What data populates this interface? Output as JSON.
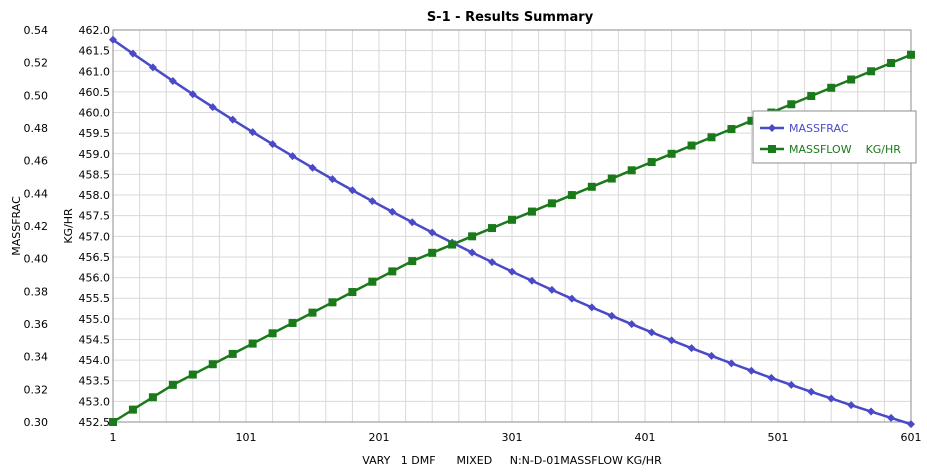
{
  "chart_data": {
    "type": "line",
    "title": "S-1 - Results Summary",
    "xlabel": "VARY   1 DMF      MIXED     N:N-D-01MASSFLOW KG/HR",
    "ylabel_left": "MASSFRAC",
    "ylabel_right": "KG/HR",
    "x_ticks": [
      1,
      101,
      201,
      301,
      401,
      501,
      601
    ],
    "xlim": [
      1,
      601
    ],
    "y1_ticks": [
      "0.30",
      "0.32",
      "0.34",
      "0.36",
      "0.38",
      "0.40",
      "0.42",
      "0.44",
      "0.46",
      "0.48",
      "0.50",
      "0.52",
      "0.54"
    ],
    "y1lim": [
      0.3,
      0.54
    ],
    "y2_ticks": [
      "452.5",
      "453.0",
      "453.5",
      "454.0",
      "454.5",
      "455.0",
      "455.5",
      "456.0",
      "456.5",
      "457.0",
      "457.5",
      "458.0",
      "458.5",
      "459.0",
      "459.5",
      "460.0",
      "460.5",
      "461.0",
      "461.5",
      "462.0"
    ],
    "y2lim": [
      452.5,
      462.0
    ],
    "grid": true,
    "legend_position": "top-right",
    "series": [
      {
        "name": "MASSFRAC",
        "axis": "left",
        "color": "#4a4ac8",
        "marker": "diamond",
        "x": [
          1,
          16,
          31,
          46,
          61,
          76,
          91,
          106,
          121,
          136,
          151,
          166,
          181,
          196,
          211,
          226,
          241,
          256,
          271,
          286,
          301,
          316,
          331,
          346,
          361,
          376,
          391,
          406,
          421,
          436,
          451,
          466,
          481,
          496,
          511,
          526,
          541,
          556,
          571,
          586,
          601
        ],
        "values": [
          0.534,
          0.5255,
          0.5171,
          0.5088,
          0.5007,
          0.4928,
          0.4851,
          0.4775,
          0.4701,
          0.4628,
          0.4557,
          0.4487,
          0.4419,
          0.4352,
          0.4287,
          0.4223,
          0.416,
          0.4098,
          0.4038,
          0.3979,
          0.3921,
          0.3865,
          0.3809,
          0.3755,
          0.3702,
          0.365,
          0.3599,
          0.3549,
          0.35,
          0.3452,
          0.3405,
          0.3359,
          0.3314,
          0.327,
          0.3227,
          0.3185,
          0.3144,
          0.3103,
          0.3064,
          0.3025,
          0.2987
        ]
      },
      {
        "name": "MASSFLOW    KG/HR",
        "axis": "right",
        "color": "#1a7a1a",
        "marker": "square",
        "x": [
          1,
          16,
          31,
          46,
          61,
          76,
          91,
          106,
          121,
          136,
          151,
          166,
          181,
          196,
          211,
          226,
          241,
          256,
          271,
          286,
          301,
          316,
          331,
          346,
          361,
          376,
          391,
          406,
          421,
          436,
          451,
          466,
          481,
          496,
          511,
          526,
          541,
          556,
          571,
          586,
          601
        ],
        "values": [
          452.5,
          452.8,
          453.1,
          453.4,
          453.65,
          453.9,
          454.15,
          454.4,
          454.65,
          454.9,
          455.15,
          455.4,
          455.65,
          455.9,
          456.15,
          456.4,
          456.6,
          456.8,
          457.0,
          457.2,
          457.4,
          457.6,
          457.8,
          458.0,
          458.2,
          458.4,
          458.6,
          458.8,
          459.0,
          459.2,
          459.4,
          459.6,
          459.8,
          460.0,
          460.2,
          460.4,
          460.6,
          460.8,
          461.0,
          461.2,
          461.4
        ]
      }
    ]
  }
}
